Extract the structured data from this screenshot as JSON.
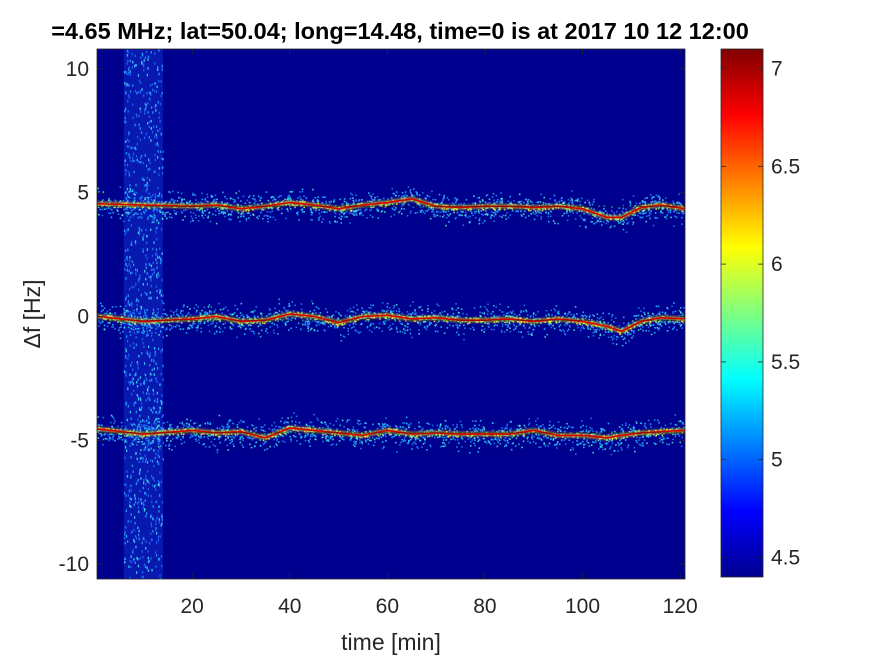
{
  "chart_data": {
    "type": "heatmap",
    "title": "=4.65 MHz;  lat=50.04; long=14.48, time=0 is at 2017 10 12 12:00",
    "xlabel": "time [min]",
    "ylabel": "Δf [Hz]",
    "xlim": [
      0.5,
      121
    ],
    "ylim": [
      -10.6,
      10.8
    ],
    "xticks": [
      20,
      40,
      60,
      80,
      100,
      120
    ],
    "yticks": [
      -10,
      -5,
      0,
      5,
      10
    ],
    "grid": false,
    "colormap": "jet",
    "background_color": "#00008f",
    "colorbar": {
      "range": [
        4.4,
        7.1
      ],
      "ticks": [
        4.5,
        5,
        5.5,
        6,
        6.5,
        7
      ]
    },
    "interference_band": {
      "x_range": [
        6,
        14
      ]
    },
    "series": [
      {
        "center": 4.45,
        "x": [
          1,
          10,
          20,
          25,
          30,
          35,
          40,
          45,
          50,
          55,
          60,
          65,
          70,
          75,
          80,
          85,
          90,
          95,
          100,
          105,
          108,
          112,
          116,
          121
        ],
        "values": [
          4.55,
          4.5,
          4.45,
          4.5,
          4.35,
          4.45,
          4.6,
          4.5,
          4.35,
          4.5,
          4.6,
          4.75,
          4.45,
          4.4,
          4.45,
          4.45,
          4.4,
          4.45,
          4.35,
          4.0,
          4.0,
          4.4,
          4.5,
          4.35
        ]
      },
      {
        "center": -0.1,
        "x": [
          1,
          10,
          20,
          25,
          30,
          35,
          40,
          45,
          50,
          55,
          60,
          65,
          70,
          75,
          80,
          85,
          90,
          95,
          100,
          105,
          108,
          112,
          116,
          121
        ],
        "values": [
          0.0,
          -0.2,
          -0.1,
          0.0,
          -0.2,
          -0.15,
          0.1,
          0.0,
          -0.25,
          0.0,
          0.05,
          -0.1,
          -0.05,
          -0.15,
          -0.15,
          -0.1,
          -0.2,
          -0.1,
          -0.2,
          -0.4,
          -0.6,
          -0.2,
          -0.05,
          -0.1
        ]
      },
      {
        "center": -4.75,
        "x": [
          1,
          10,
          20,
          25,
          30,
          35,
          40,
          45,
          50,
          55,
          60,
          65,
          70,
          75,
          80,
          85,
          90,
          95,
          100,
          105,
          108,
          112,
          116,
          121
        ],
        "values": [
          -4.55,
          -4.75,
          -4.6,
          -4.7,
          -4.65,
          -4.9,
          -4.5,
          -4.6,
          -4.7,
          -4.8,
          -4.6,
          -4.75,
          -4.7,
          -4.75,
          -4.75,
          -4.75,
          -4.6,
          -4.8,
          -4.8,
          -4.9,
          -4.8,
          -4.7,
          -4.65,
          -4.6
        ]
      }
    ],
    "reference_lines": [
      4.45,
      -0.15,
      -4.7
    ]
  }
}
